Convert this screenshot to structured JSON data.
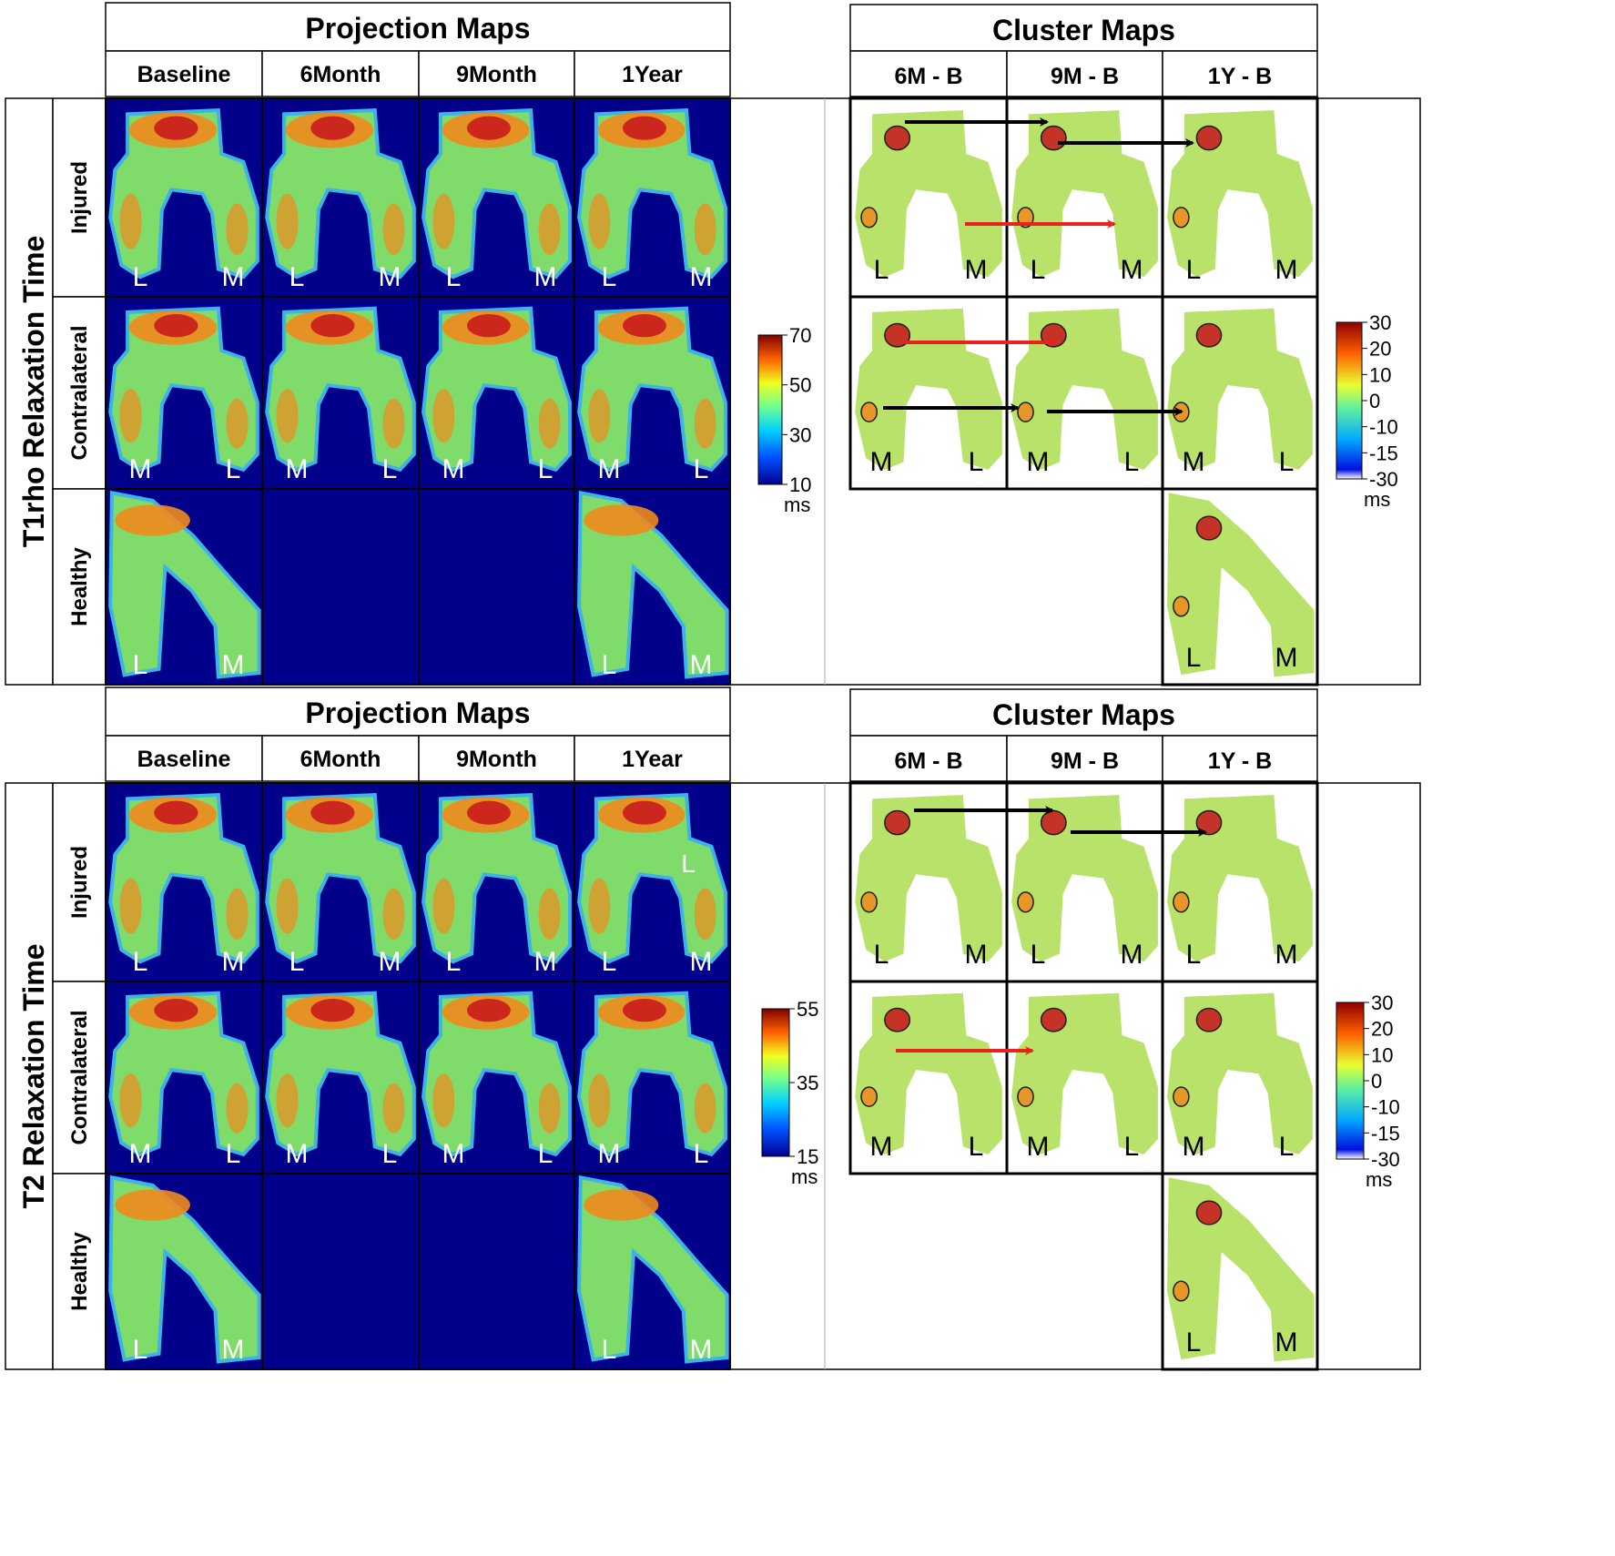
{
  "sections": [
    {
      "group_label": "T1rho Relaxation Time",
      "projection_title": "Projection Maps",
      "cluster_title": "Cluster Maps",
      "projection_columns": [
        "Baseline",
        "6Month",
        "9Month",
        "1Year"
      ],
      "cluster_columns": [
        "6M - B",
        "9M - B",
        "1Y - B"
      ],
      "rows": [
        {
          "label": "Injured",
          "left_letter": "L",
          "right_letter": "M"
        },
        {
          "label": "Contralateral",
          "left_letter": "M",
          "right_letter": "L"
        },
        {
          "label": "Healthy",
          "left_letter": "L",
          "right_letter": "M"
        }
      ],
      "projection_colorbar": {
        "ticks": [
          "70",
          "50",
          "30",
          "10"
        ],
        "unit": "ms"
      },
      "cluster_colorbar": {
        "ticks": [
          "30",
          "20",
          "10",
          "0",
          "-10",
          "-15",
          "-30"
        ],
        "unit": "ms"
      }
    },
    {
      "group_label": "T2 Relaxation Time",
      "projection_title": "Projection Maps",
      "cluster_title": "Cluster Maps",
      "projection_columns": [
        "Baseline",
        "6Month",
        "9Month",
        "1Year"
      ],
      "cluster_columns": [
        "6M - B",
        "9M - B",
        "1Y - B"
      ],
      "rows": [
        {
          "label": "Injured",
          "left_letter": "L",
          "right_letter": "M"
        },
        {
          "label": "Contralateral",
          "left_letter": "M",
          "right_letter": "L"
        },
        {
          "label": "Healthy",
          "left_letter": "L",
          "right_letter": "M"
        }
      ],
      "projection_colorbar": {
        "ticks": [
          "55",
          "35",
          "15"
        ],
        "unit": "ms"
      },
      "cluster_colorbar": {
        "ticks": [
          "30",
          "20",
          "10",
          "0",
          "-10",
          "-15",
          "-30"
        ],
        "unit": "ms"
      }
    }
  ],
  "extra_marks": {
    "t2_injured_1year_letter": "L"
  },
  "colors": {
    "map_background": "#00008b",
    "projection_fill": "#7fdc6a",
    "cluster_fill": "#b8e26a",
    "hot": "#c8141c",
    "warm": "#f08a1c",
    "cool": "#3cb4e6",
    "black_arrow": "#000000",
    "red_arrow": "#e8231f"
  }
}
